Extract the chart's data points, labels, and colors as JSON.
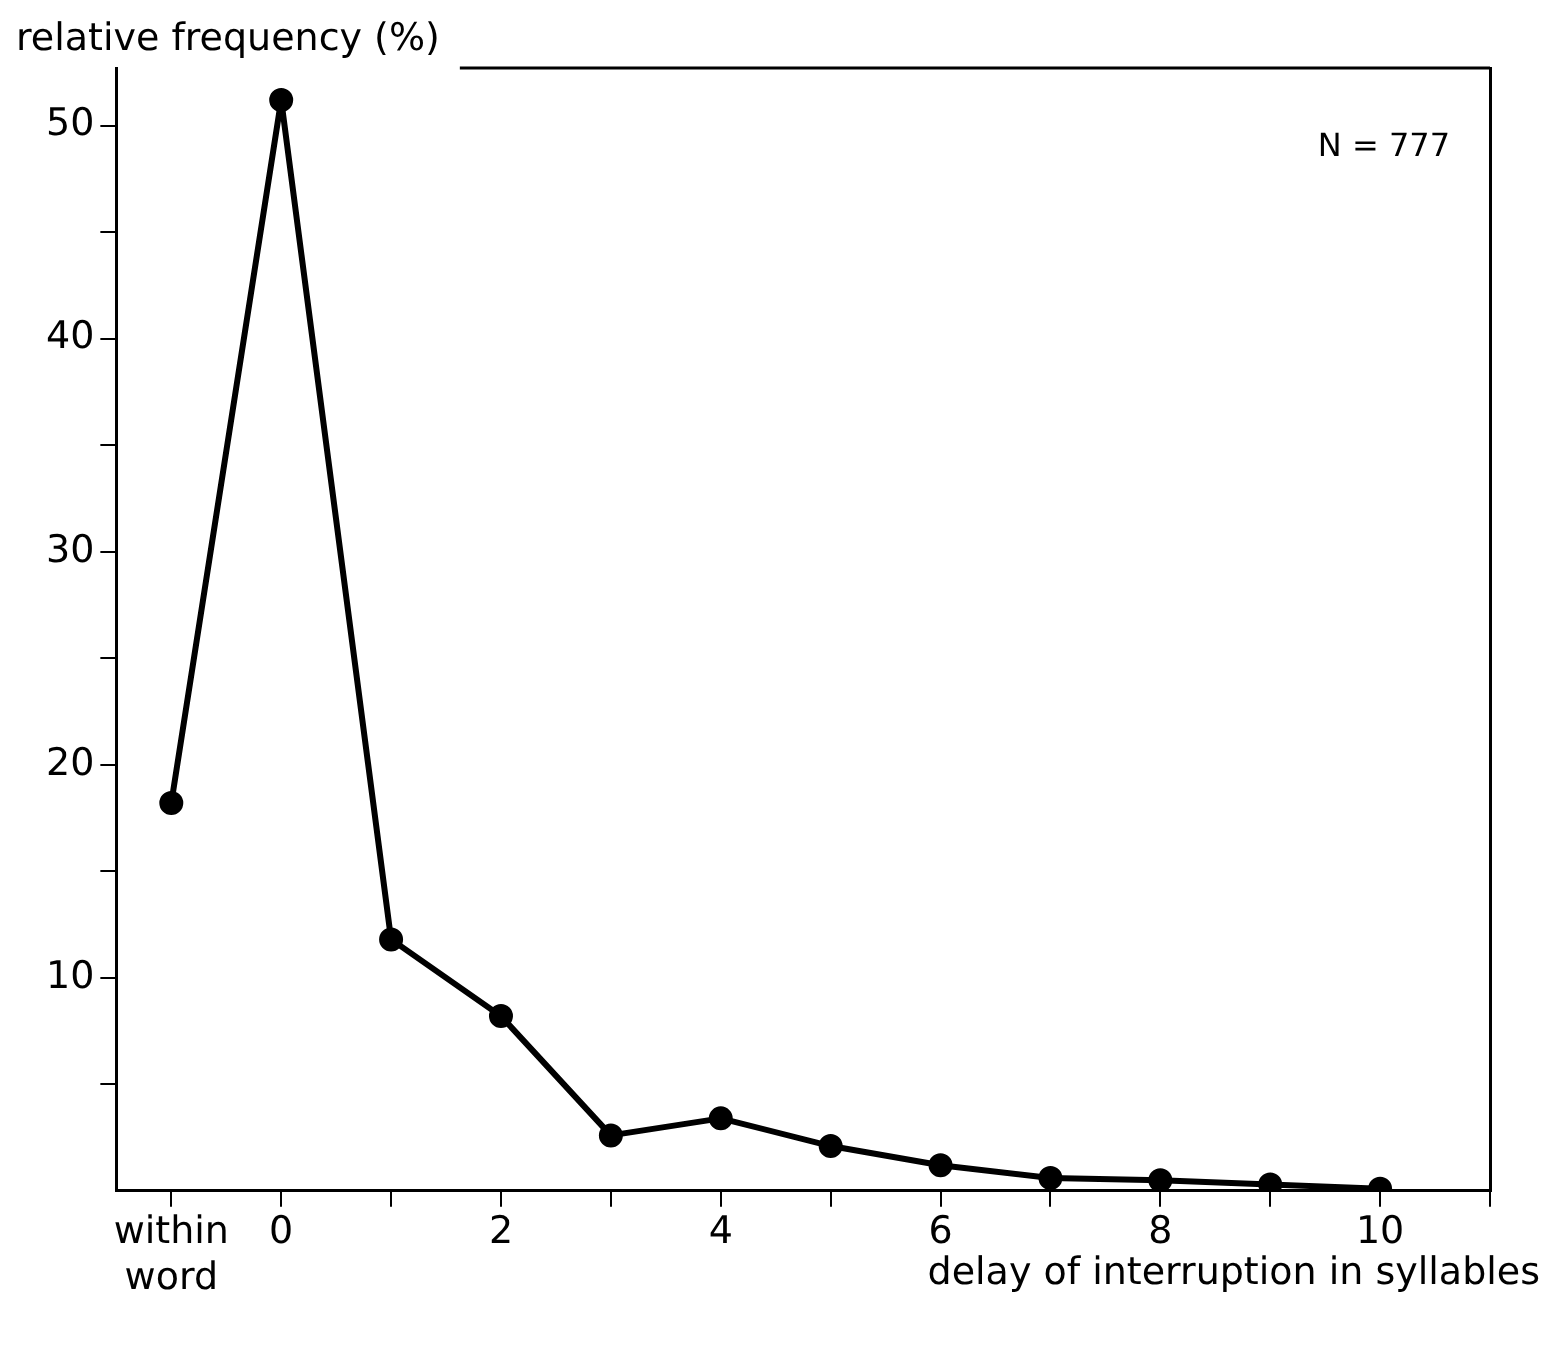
{
  "chart_data": {
    "type": "line",
    "ylabel": "relative frequency (%)",
    "xlabel": "delay of interruption in syllables",
    "annotations": [
      "N = 777"
    ],
    "x": [
      -1,
      0,
      1,
      2,
      3,
      4,
      5,
      6,
      7,
      8,
      9,
      10
    ],
    "series": [
      {
        "color": "#000000",
        "values": [
          18.2,
          51.2,
          11.8,
          8.2,
          2.6,
          3.4,
          2.1,
          1.2,
          0.6,
          0.5,
          0.3,
          0.1
        ]
      }
    ],
    "xlim": [
      -1.5,
      11
    ],
    "xticks": [
      {
        "value": -1,
        "label": "within word"
      },
      0,
      {
        "value": 1,
        "label": null
      },
      2,
      {
        "value": 3,
        "label": null
      },
      4,
      {
        "value": 5,
        "label": null
      },
      6,
      {
        "value": 7,
        "label": null
      },
      8,
      {
        "value": 9,
        "label": null
      },
      10,
      {
        "value": 11,
        "label": null
      }
    ],
    "ylim": [
      0,
      52.7
    ],
    "yticks": [
      {
        "value": 5,
        "label": null
      },
      10,
      {
        "value": 15,
        "label": null
      },
      20,
      {
        "value": 25,
        "label": null
      },
      30,
      {
        "value": 35,
        "label": null
      },
      40,
      {
        "value": 45,
        "label": null
      },
      50
    ],
    "grid": false,
    "legend": false,
    "marker": "circle",
    "line_style": "solid"
  }
}
